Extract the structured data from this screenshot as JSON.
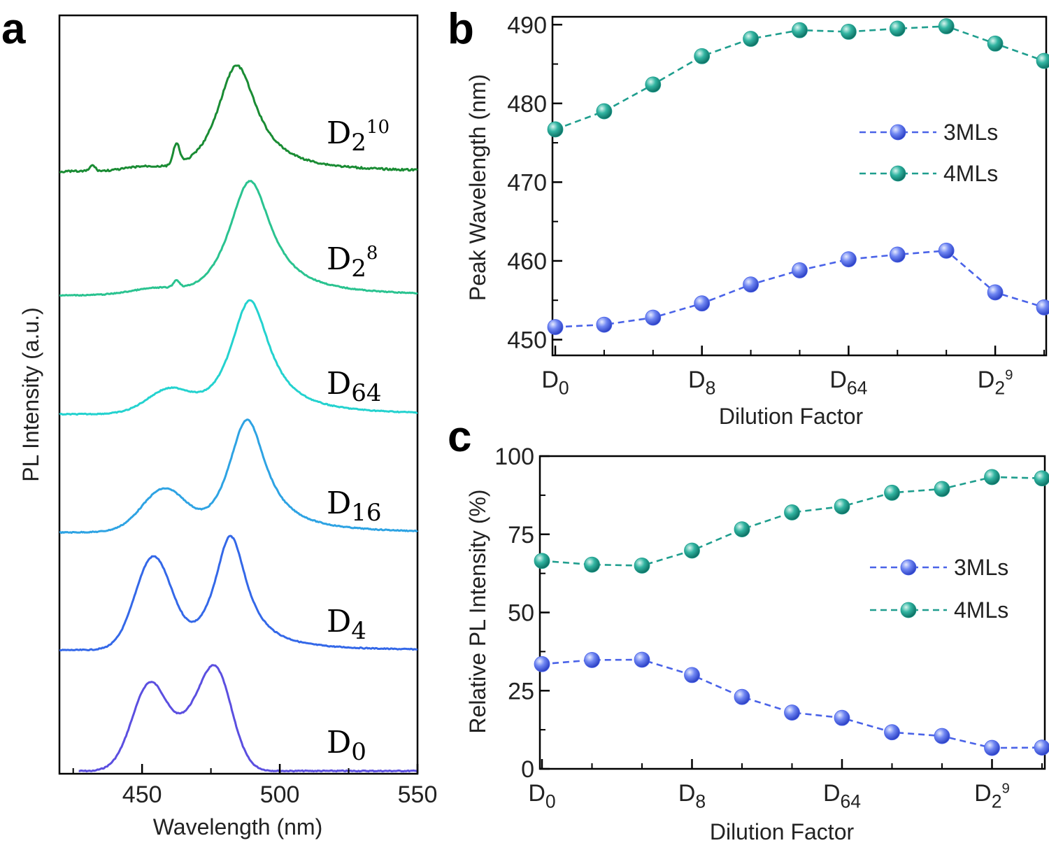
{
  "panels": [
    {
      "letter": "a",
      "chart_data": {
        "type": "line",
        "xlabel": "Wavelength (nm)",
        "ylabel": "PL Intensity (a.u.)",
        "xlim": [
          420,
          550
        ],
        "xticks": [
          "450",
          "500",
          "550"
        ],
        "y_ticks_shown": false,
        "series": [
          {
            "label_base": "D",
            "label_sub": "0",
            "label_sup": "",
            "color": "#5b4fe0"
          },
          {
            "label_base": "D",
            "label_sub": "4",
            "label_sup": "",
            "color": "#3468e8"
          },
          {
            "label_base": "D",
            "label_sub": "16",
            "label_sup": "",
            "color": "#2ea3e3"
          },
          {
            "label_base": "D",
            "label_sub": "64",
            "label_sup": "",
            "color": "#24d2cf"
          },
          {
            "label_base": "D",
            "label_sub": "2",
            "label_sup": "8",
            "color": "#2ac390"
          },
          {
            "label_base": "D",
            "label_sub": "2",
            "label_sup": "10",
            "color": "#1a8c34"
          }
        ]
      }
    },
    {
      "letter": "b",
      "chart_data": {
        "type": "line",
        "xlabel": "Dilution Factor",
        "ylabel": "Peak Wavelength (nm)",
        "ylim": [
          448,
          491
        ],
        "yticks": [
          "450",
          "460",
          "470",
          "480",
          "490"
        ],
        "xtick_labels": [
          {
            "base": "D",
            "sub": "0",
            "sup": ""
          },
          {
            "base": "D",
            "sub": "8",
            "sup": ""
          },
          {
            "base": "D",
            "sub": "64",
            "sup": ""
          },
          {
            "base": "D",
            "sub": "2",
            "sup": "9"
          }
        ],
        "x": [
          0,
          1,
          2,
          3,
          4,
          5,
          6,
          7,
          8,
          9,
          10
        ],
        "series": [
          {
            "name": "3MLs",
            "color": "#4a63e8",
            "values": [
              451.6,
              451.9,
              452.8,
              454.6,
              457.0,
              458.8,
              460.2,
              460.8,
              461.3,
              456.0,
              454.1
            ]
          },
          {
            "name": "4MLs",
            "color": "#1f9e8e",
            "values": [
              476.7,
              479.0,
              482.4,
              486.0,
              488.2,
              489.3,
              489.1,
              489.5,
              489.8,
              487.6,
              485.4
            ]
          }
        ],
        "legend": "right-middle"
      }
    },
    {
      "letter": "c",
      "chart_data": {
        "type": "line",
        "xlabel": "Dilution Factor",
        "ylabel": "Relative PL Intensity (%)",
        "ylim": [
          0,
          100
        ],
        "yticks": [
          "0",
          "25",
          "50",
          "75",
          "100"
        ],
        "xtick_labels": [
          {
            "base": "D",
            "sub": "0",
            "sup": ""
          },
          {
            "base": "D",
            "sub": "8",
            "sup": ""
          },
          {
            "base": "D",
            "sub": "64",
            "sup": ""
          },
          {
            "base": "D",
            "sub": "2",
            "sup": "9"
          }
        ],
        "x": [
          0,
          1,
          2,
          3,
          4,
          5,
          6,
          7,
          8,
          9,
          10
        ],
        "series": [
          {
            "name": "3MLs",
            "color": "#4a63e8",
            "values": [
              33.5,
              34.8,
              34.9,
              30.0,
              23.0,
              18.0,
              16.3,
              11.7,
              10.5,
              6.7,
              6.8
            ]
          },
          {
            "name": "4MLs",
            "color": "#1f9e8e",
            "values": [
              66.5,
              65.3,
              65.0,
              69.8,
              76.6,
              82.0,
              83.9,
              88.3,
              89.5,
              93.3,
              92.9
            ]
          }
        ],
        "legend": "right-middle"
      }
    }
  ]
}
